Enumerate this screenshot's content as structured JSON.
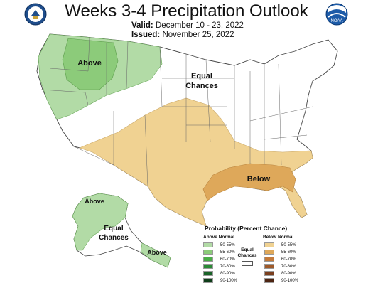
{
  "title": "Weeks 3-4 Precipitation Outlook",
  "valid_label": "Valid:",
  "valid_value": "December 10 - 23, 2022",
  "issued_label": "Issued:",
  "issued_value": "November 25, 2022",
  "regions": {
    "above_nw": "Above",
    "equal_center_1": "Equal",
    "equal_center_2": "Chances",
    "below_se": "Below",
    "above_ak": "Above",
    "equal_ak_1": "Equal",
    "equal_ak_2": "Chances",
    "above_ak_se": "Above"
  },
  "legend": {
    "title": "Probability (Percent Chance)",
    "above_header": "Above Normal",
    "below_header": "Below Normal",
    "equal_1": "Equal",
    "equal_2": "Chances",
    "above_items": [
      {
        "label": "50-55%",
        "color": "#b2dba6"
      },
      {
        "label": "55-60%",
        "color": "#8ccb7a"
      },
      {
        "label": "60-70%",
        "color": "#4aae47"
      },
      {
        "label": "70-80%",
        "color": "#2a8a36"
      },
      {
        "label": "80-90%",
        "color": "#1a6328"
      },
      {
        "label": "90-100%",
        "color": "#0e3d18"
      }
    ],
    "below_items": [
      {
        "label": "50-55%",
        "color": "#f0d292"
      },
      {
        "label": "55-60%",
        "color": "#dea85a"
      },
      {
        "label": "60-70%",
        "color": "#c47a3b"
      },
      {
        "label": "70-80%",
        "color": "#9f5a2a"
      },
      {
        "label": "80-90%",
        "color": "#7a3f1e"
      },
      {
        "label": "90-100%",
        "color": "#4d2512"
      }
    ]
  },
  "logos": {
    "left": "noaa-doc-seal-icon",
    "right": "noaa-logo-icon"
  }
}
